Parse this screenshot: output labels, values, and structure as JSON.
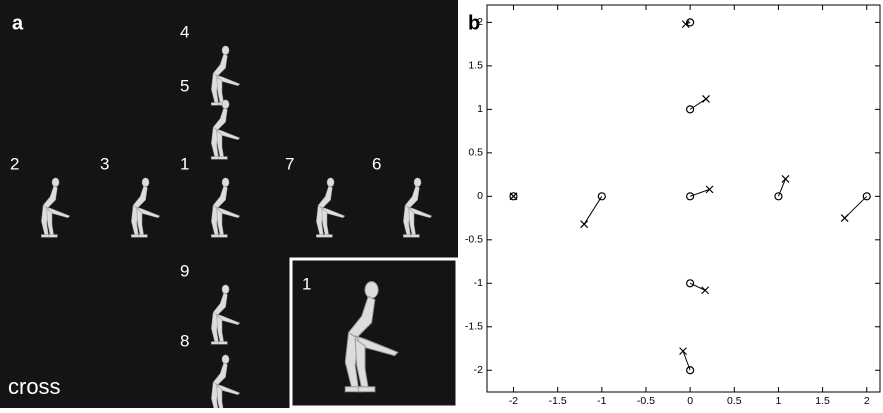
{
  "panel_a": {
    "label": "a",
    "caption": "cross",
    "figure_labels": [
      "4",
      "5",
      "2",
      "3",
      "1",
      "7",
      "6",
      "9",
      "8"
    ],
    "inset_label": "1"
  },
  "chart_data": {
    "type": "scatter",
    "panel_label": "b",
    "series": [
      {
        "marker": "o",
        "color": "#000000",
        "x": [
          -2,
          -1,
          0,
          1,
          2,
          0,
          0,
          0,
          0
        ],
        "values": [
          0,
          0,
          0,
          0,
          0,
          2,
          1,
          -1,
          -2
        ]
      },
      {
        "marker": "x",
        "color": "#000000",
        "x": [
          -2,
          -1.2,
          0.22,
          1.08,
          1.75,
          -0.05,
          0.18,
          0.17,
          -0.08
        ],
        "values": [
          0,
          -0.32,
          0.08,
          0.2,
          -0.25,
          1.98,
          1.12,
          -1.08,
          -1.78
        ]
      }
    ],
    "xlim": [
      -2.3,
      2.15
    ],
    "ylim": [
      -2.25,
      2.2
    ],
    "xticks": [
      -2,
      -1.5,
      -1,
      -0.5,
      0,
      0.5,
      1,
      1.5,
      2
    ],
    "yticks": [
      -2,
      -1.5,
      -1,
      -0.5,
      0,
      0.5,
      1,
      1.5,
      2
    ]
  }
}
